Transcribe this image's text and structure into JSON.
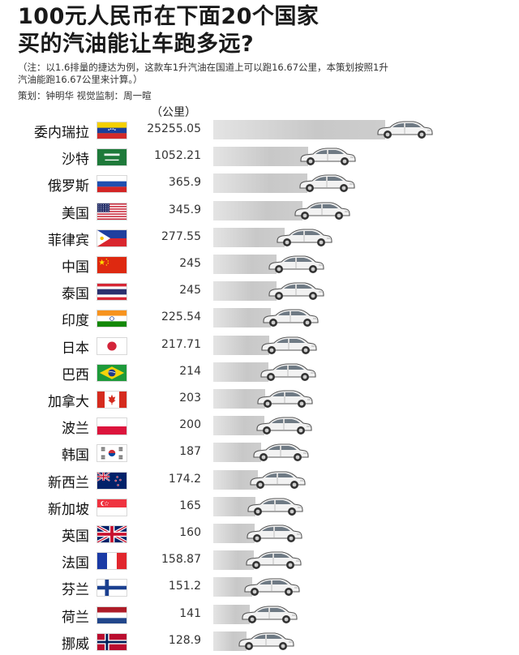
{
  "title_line1": "100元人民币在下面20个国家",
  "title_line2": "买的汽油能让车跑多远?",
  "note_line1": "（注：以1.6排量的捷达为例，这款车1升汽油在国道上可以跑16.67公里，本策划按照1升",
  "note_line2": "汽油能跑16.67公里来计算。）",
  "credits": "策划：钟明华  视觉监制：周一暄",
  "unit_label": "（公里）",
  "chart_data": {
    "type": "bar",
    "orientation": "horizontal",
    "unit": "公里",
    "categories": [
      "委内瑞拉",
      "沙特",
      "俄罗斯",
      "美国",
      "菲律宾",
      "中国",
      "泰国",
      "印度",
      "日本",
      "巴西",
      "加拿大",
      "波兰",
      "韩国",
      "新西兰",
      "新加坡",
      "英国",
      "法国",
      "芬兰",
      "荷兰",
      "挪威"
    ],
    "values": [
      25255.05,
      1052.21,
      365.9,
      345.9,
      277.55,
      245,
      245,
      225.54,
      217.71,
      214,
      203,
      200,
      187,
      174.2,
      165,
      160,
      158.87,
      151.2,
      141,
      128.9
    ],
    "value_labels": [
      "25255.05",
      "1052.21",
      "365.9",
      "345.9",
      "277.55",
      "245",
      "245",
      "225.54",
      "217.71",
      "214",
      "203",
      "200",
      "187",
      "174.2",
      "165",
      "160",
      "158.87",
      "151.2",
      "141",
      "128.9"
    ],
    "flags": [
      "venezuela-flag-icon",
      "saudi-flag-icon",
      "russia-flag-icon",
      "usa-flag-icon",
      "philippines-flag-icon",
      "china-flag-icon",
      "thailand-flag-icon",
      "india-flag-icon",
      "japan-flag-icon",
      "brazil-flag-icon",
      "canada-flag-icon",
      "poland-flag-icon",
      "korea-flag-icon",
      "new-zealand-flag-icon",
      "singapore-flag-icon",
      "uk-flag-icon",
      "france-flag-icon",
      "finland-flag-icon",
      "netherlands-flag-icon",
      "norway-flag-icon"
    ],
    "bar_marker": "car-icon",
    "colors": {
      "bar": "#c8c8c8",
      "car_body": "#f2f2f2",
      "car_outline": "#555555"
    }
  }
}
